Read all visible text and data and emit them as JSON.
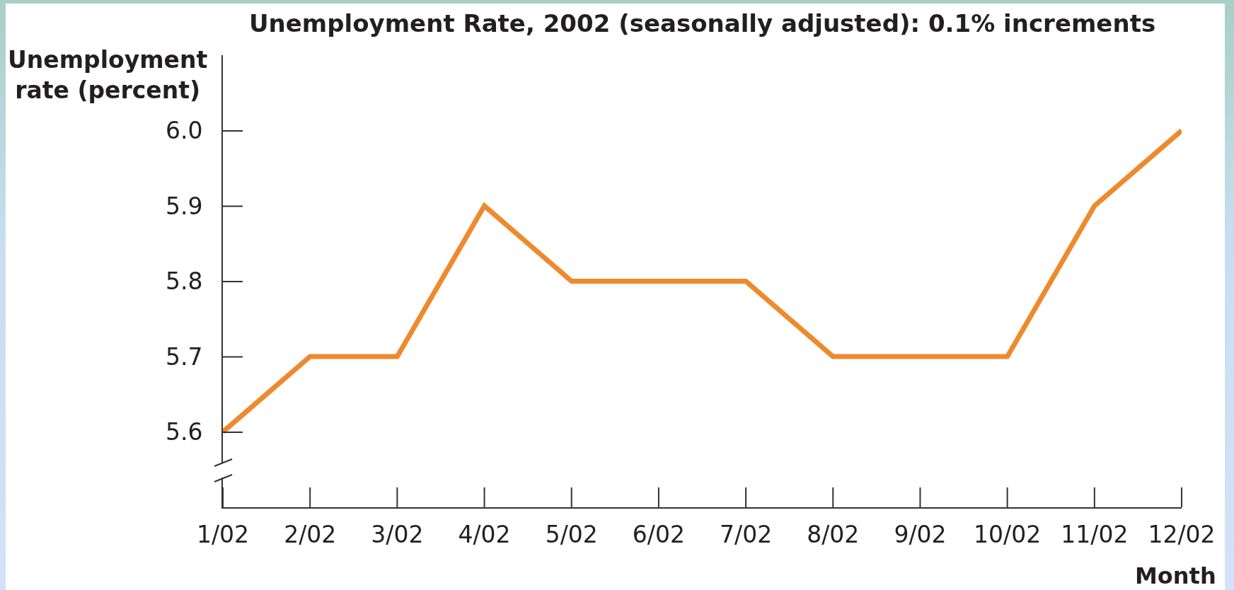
{
  "chart_data": {
    "type": "line",
    "title": "Unemployment Rate, 2002 (seasonally adjusted): 0.1% increments",
    "xlabel": "Month",
    "ylabel": "Unemployment rate (percent)",
    "categories": [
      "1/02",
      "2/02",
      "3/02",
      "4/02",
      "5/02",
      "6/02",
      "7/02",
      "8/02",
      "9/02",
      "10/02",
      "11/02",
      "12/02"
    ],
    "series": [
      {
        "color": "#ee8a2e",
        "values": [
          5.6,
          5.7,
          5.7,
          5.9,
          5.8,
          5.8,
          5.8,
          5.7,
          5.7,
          5.7,
          5.9,
          6.0
        ]
      }
    ],
    "ylim": [
      5.5,
      6.1
    ],
    "yticks": [
      5.6,
      5.7,
      5.8,
      5.9,
      {
        "value": 6.0,
        "label": "6.0"
      }
    ]
  }
}
